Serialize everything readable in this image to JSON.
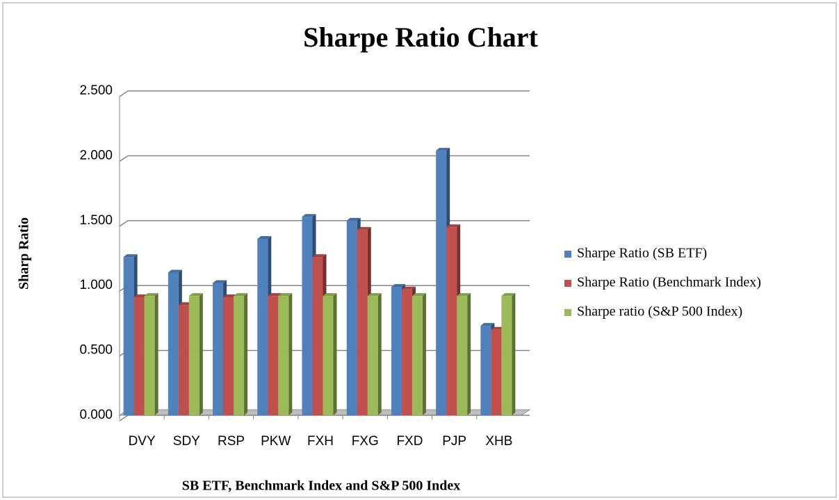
{
  "chart_data": {
    "type": "bar3d",
    "title": "Sharpe Ratio Chart",
    "y_label": "Sharp Ratio",
    "x_label": "SB ETF, Benchmark Index and S&P 500 Index",
    "categories": [
      "DVY",
      "SDY",
      "RSP",
      "PKW",
      "FXH",
      "FXG",
      "FXD",
      "PJP",
      "XHB"
    ],
    "series": [
      {
        "name": "Sharpe Ratio (SB ETF)",
        "color": "#4f81bd",
        "values": [
          1.22,
          1.1,
          1.02,
          1.36,
          1.53,
          1.5,
          0.99,
          2.04,
          0.69
        ]
      },
      {
        "name": "Sharpe Ratio (Benchmark Index)",
        "color": "#c0504d",
        "values": [
          0.91,
          0.85,
          0.91,
          0.92,
          1.22,
          1.43,
          0.97,
          1.45,
          0.66
        ]
      },
      {
        "name": "Sharpe ratio (S&P 500 Index)",
        "color": "#9bbb59",
        "values": [
          0.92,
          0.92,
          0.92,
          0.92,
          0.92,
          0.92,
          0.92,
          0.92,
          0.92
        ]
      }
    ],
    "ylim": [
      0,
      2.5
    ],
    "yticks": [
      {
        "value": 0,
        "label": "0.000"
      },
      {
        "value": 0.5,
        "label": "0.500"
      },
      {
        "value": 1,
        "label": "1.000"
      },
      {
        "value": 1.5,
        "label": "1.500"
      },
      {
        "value": 2,
        "label": "2.000"
      },
      {
        "value": 2.5,
        "label": "2.500"
      }
    ],
    "grid": true,
    "legend": "right"
  }
}
